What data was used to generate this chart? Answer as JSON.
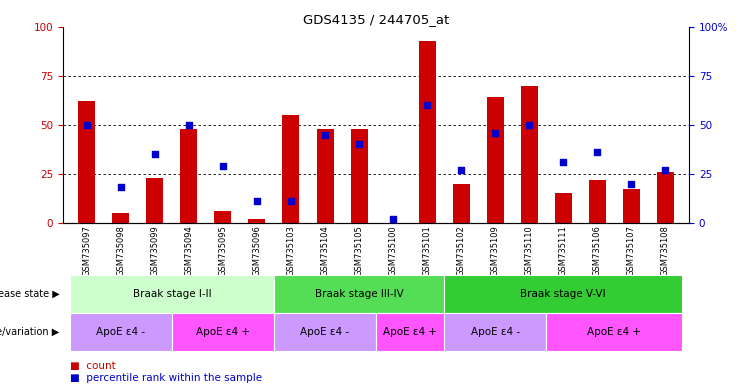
{
  "title": "GDS4135 / 244705_at",
  "samples": [
    "GSM735097",
    "GSM735098",
    "GSM735099",
    "GSM735094",
    "GSM735095",
    "GSM735096",
    "GSM735103",
    "GSM735104",
    "GSM735105",
    "GSM735100",
    "GSM735101",
    "GSM735102",
    "GSM735109",
    "GSM735110",
    "GSM735111",
    "GSM735106",
    "GSM735107",
    "GSM735108"
  ],
  "counts": [
    62,
    5,
    23,
    48,
    6,
    2,
    55,
    48,
    48,
    0,
    93,
    20,
    64,
    70,
    15,
    22,
    17,
    26
  ],
  "percentiles": [
    50,
    18,
    35,
    50,
    29,
    11,
    11,
    45,
    40,
    2,
    60,
    27,
    46,
    50,
    31,
    36,
    20,
    27
  ],
  "ylim_left": [
    0,
    100
  ],
  "ylim_right": [
    0,
    100
  ],
  "yticks": [
    0,
    25,
    50,
    75,
    100
  ],
  "bar_color": "#cc0000",
  "dot_color": "#0000cc",
  "background_color": "#ffffff",
  "disease_state_groups": [
    {
      "label": "Braak stage I-II",
      "start": 0,
      "end": 6,
      "color": "#ccffcc"
    },
    {
      "label": "Braak stage III-IV",
      "start": 6,
      "end": 11,
      "color": "#55dd55"
    },
    {
      "label": "Braak stage V-VI",
      "start": 11,
      "end": 18,
      "color": "#33cc33"
    }
  ],
  "genotype_groups": [
    {
      "label": "ApoE ε4 -",
      "start": 0,
      "end": 3,
      "color": "#cc99ff"
    },
    {
      "label": "ApoE ε4 +",
      "start": 3,
      "end": 6,
      "color": "#ff55ff"
    },
    {
      "label": "ApoE ε4 -",
      "start": 6,
      "end": 9,
      "color": "#cc99ff"
    },
    {
      "label": "ApoE ε4 +",
      "start": 9,
      "end": 11,
      "color": "#ff55ff"
    },
    {
      "label": "ApoE ε4 -",
      "start": 11,
      "end": 14,
      "color": "#cc99ff"
    },
    {
      "label": "ApoE ε4 +",
      "start": 14,
      "end": 18,
      "color": "#ff55ff"
    }
  ],
  "disease_state_label": "disease state",
  "genotype_label": "genotype/variation",
  "legend_count_label": "count",
  "legend_pct_label": "percentile rank within the sample",
  "bar_width": 0.5,
  "left_ylabel_color": "#cc0000",
  "right_ylabel_color": "#0000cc"
}
